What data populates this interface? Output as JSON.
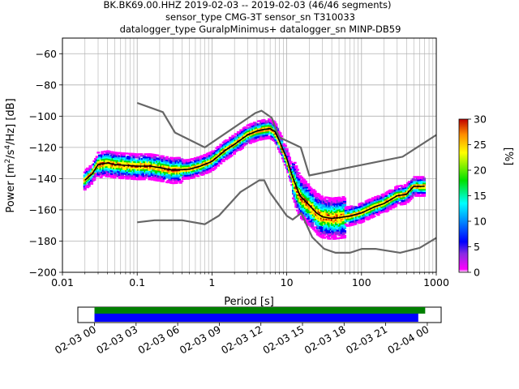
{
  "title_lines": [
    "BK.BK69.00.HHZ   2019-02-03 -- 2019-02-03  (46/46 segments)",
    "sensor_type CMG-3T sensor_sn T310033",
    "datalogger_type GuralpMinimus+ datalogger_sn MINP-DB59"
  ],
  "colorbar": {
    "label": "[%]",
    "ticks": [
      "0",
      "5",
      "10",
      "15",
      "20",
      "25",
      "30"
    ],
    "range": [
      0,
      30
    ],
    "colormap": "pqlx"
  },
  "timeline": {
    "tick_labels": [
      "02-03 00",
      "02-03 03",
      "02-03 06",
      "02-03 09",
      "02-03 12",
      "02-03 15",
      "02-03 18",
      "02-03 21",
      "02-04 00"
    ],
    "bars": [
      {
        "color": "#008000",
        "start_h": 0.0,
        "end_h": 23.85
      },
      {
        "color": "#0000ff",
        "start_h": 0.0,
        "end_h": 23.35
      }
    ],
    "range_h": [
      -1.2,
      25.0
    ]
  },
  "chart_data": {
    "type": "line",
    "xlabel": "Period [s]",
    "ylabel_main": "Power [m",
    "ylabel_sup1": "2",
    "ylabel_mid": "/s",
    "ylabel_sup2": "4",
    "ylabel_tail": "/Hz] [dB]",
    "xscale": "log",
    "xlim": [
      0.01,
      1000
    ],
    "ylim": [
      -200,
      -50
    ],
    "xticks": [
      "0.01",
      "0.1",
      "1",
      "10",
      "100",
      "1000"
    ],
    "yticks": [
      "−200",
      "−180",
      "−160",
      "−140",
      "−120",
      "−100",
      "−80",
      "−60"
    ],
    "grid": true,
    "noise_models": [
      {
        "name": "NHNM",
        "color": "#666666",
        "x": [
          0.1,
          0.22,
          0.32,
          0.8,
          3.8,
          4.6,
          6.3,
          7.9,
          15.4,
          20,
          354.8,
          1000
        ],
        "y": [
          -91.5,
          -97.4,
          -110.5,
          -120,
          -98,
          -96.5,
          -101,
          -113.5,
          -120,
          -138,
          -126,
          -112
        ]
      },
      {
        "name": "NLNM",
        "color": "#666666",
        "x": [
          0.1,
          0.17,
          0.4,
          0.8,
          1.24,
          2.4,
          4.3,
          5,
          6,
          10,
          12,
          15.6,
          21.9,
          31.6,
          45,
          70,
          101,
          154,
          328,
          600,
          1000
        ],
        "y": [
          -168,
          -166.7,
          -166.7,
          -169.2,
          -163.7,
          -148.6,
          -141.1,
          -141.1,
          -149,
          -163.8,
          -166.2,
          -162.1,
          -177.5,
          -185,
          -187.5,
          -187.5,
          -185,
          -185,
          -187.5,
          -184.4,
          -178
        ]
      }
    ],
    "median": {
      "name": "median",
      "color": "#000000",
      "x": [
        0.02,
        0.025,
        0.03,
        0.04,
        0.05,
        0.07,
        0.1,
        0.15,
        0.2,
        0.3,
        0.5,
        0.7,
        1,
        1.5,
        2,
        3,
        4,
        5,
        6,
        7,
        8,
        10,
        12,
        15,
        20,
        25,
        30,
        40,
        50,
        70,
        100,
        150,
        200,
        300,
        400,
        500,
        700
      ],
      "y": [
        -141,
        -137,
        -131,
        -130,
        -131,
        -131.5,
        -132,
        -132,
        -133,
        -134.5,
        -134,
        -132,
        -129,
        -122,
        -118,
        -112,
        -109.5,
        -108.5,
        -108,
        -110,
        -116,
        -127,
        -139,
        -151,
        -157,
        -162,
        -164.5,
        -165.5,
        -165,
        -164,
        -162,
        -158,
        -156,
        -151,
        -150,
        -145,
        -145
      ]
    },
    "density_spread_db": 6
  }
}
